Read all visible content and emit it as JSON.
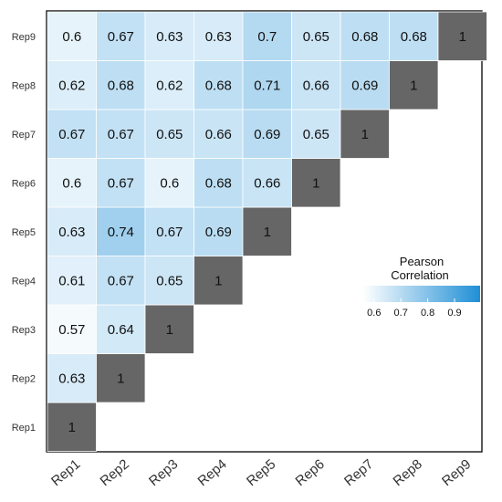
{
  "chart_data": {
    "type": "heatmap",
    "title": "",
    "xlabel": "",
    "ylabel": "",
    "x_categories": [
      "Rep1",
      "Rep2",
      "Rep3",
      "Rep4",
      "Rep5",
      "Rep6",
      "Rep7",
      "Rep8",
      "Rep9"
    ],
    "y_categories": [
      "Rep1",
      "Rep2",
      "Rep3",
      "Rep4",
      "Rep5",
      "Rep6",
      "Rep7",
      "Rep8",
      "Rep9"
    ],
    "cells": [
      {
        "x": "Rep1",
        "y": "Rep1",
        "value": 1
      },
      {
        "x": "Rep1",
        "y": "Rep2",
        "value": 0.63
      },
      {
        "x": "Rep2",
        "y": "Rep2",
        "value": 1
      },
      {
        "x": "Rep1",
        "y": "Rep3",
        "value": 0.57
      },
      {
        "x": "Rep2",
        "y": "Rep3",
        "value": 0.64
      },
      {
        "x": "Rep3",
        "y": "Rep3",
        "value": 1
      },
      {
        "x": "Rep1",
        "y": "Rep4",
        "value": 0.61
      },
      {
        "x": "Rep2",
        "y": "Rep4",
        "value": 0.67
      },
      {
        "x": "Rep3",
        "y": "Rep4",
        "value": 0.65
      },
      {
        "x": "Rep4",
        "y": "Rep4",
        "value": 1
      },
      {
        "x": "Rep1",
        "y": "Rep5",
        "value": 0.63
      },
      {
        "x": "Rep2",
        "y": "Rep5",
        "value": 0.74
      },
      {
        "x": "Rep3",
        "y": "Rep5",
        "value": 0.67
      },
      {
        "x": "Rep4",
        "y": "Rep5",
        "value": 0.69
      },
      {
        "x": "Rep5",
        "y": "Rep5",
        "value": 1
      },
      {
        "x": "Rep1",
        "y": "Rep6",
        "value": 0.6
      },
      {
        "x": "Rep2",
        "y": "Rep6",
        "value": 0.67
      },
      {
        "x": "Rep3",
        "y": "Rep6",
        "value": 0.6
      },
      {
        "x": "Rep4",
        "y": "Rep6",
        "value": 0.68
      },
      {
        "x": "Rep5",
        "y": "Rep6",
        "value": 0.66
      },
      {
        "x": "Rep6",
        "y": "Rep6",
        "value": 1
      },
      {
        "x": "Rep1",
        "y": "Rep7",
        "value": 0.67
      },
      {
        "x": "Rep2",
        "y": "Rep7",
        "value": 0.67
      },
      {
        "x": "Rep3",
        "y": "Rep7",
        "value": 0.65
      },
      {
        "x": "Rep4",
        "y": "Rep7",
        "value": 0.66
      },
      {
        "x": "Rep5",
        "y": "Rep7",
        "value": 0.69
      },
      {
        "x": "Rep6",
        "y": "Rep7",
        "value": 0.65
      },
      {
        "x": "Rep7",
        "y": "Rep7",
        "value": 1
      },
      {
        "x": "Rep1",
        "y": "Rep8",
        "value": 0.62
      },
      {
        "x": "Rep2",
        "y": "Rep8",
        "value": 0.68
      },
      {
        "x": "Rep3",
        "y": "Rep8",
        "value": 0.62
      },
      {
        "x": "Rep4",
        "y": "Rep8",
        "value": 0.68
      },
      {
        "x": "Rep5",
        "y": "Rep8",
        "value": 0.71
      },
      {
        "x": "Rep6",
        "y": "Rep8",
        "value": 0.66
      },
      {
        "x": "Rep7",
        "y": "Rep8",
        "value": 0.69
      },
      {
        "x": "Rep8",
        "y": "Rep8",
        "value": 1
      },
      {
        "x": "Rep1",
        "y": "Rep9",
        "value": 0.6
      },
      {
        "x": "Rep2",
        "y": "Rep9",
        "value": 0.67
      },
      {
        "x": "Rep3",
        "y": "Rep9",
        "value": 0.63
      },
      {
        "x": "Rep4",
        "y": "Rep9",
        "value": 0.63
      },
      {
        "x": "Rep5",
        "y": "Rep9",
        "value": 0.7
      },
      {
        "x": "Rep6",
        "y": "Rep9",
        "value": 0.65
      },
      {
        "x": "Rep7",
        "y": "Rep9",
        "value": 0.68
      },
      {
        "x": "Rep8",
        "y": "Rep9",
        "value": 0.68
      },
      {
        "x": "Rep9",
        "y": "Rep9",
        "value": 1
      }
    ],
    "color_scale": {
      "low_color": "#ffffff",
      "high_color": "#1f8fd6",
      "range": [
        0.55,
        1.0
      ],
      "diagonal_color": "#666666"
    },
    "legend": {
      "title_lines": [
        "Pearson",
        "Correlation"
      ],
      "ticks": [
        0.6,
        0.7,
        0.8,
        0.9
      ],
      "placement": "right"
    },
    "grid": false
  }
}
